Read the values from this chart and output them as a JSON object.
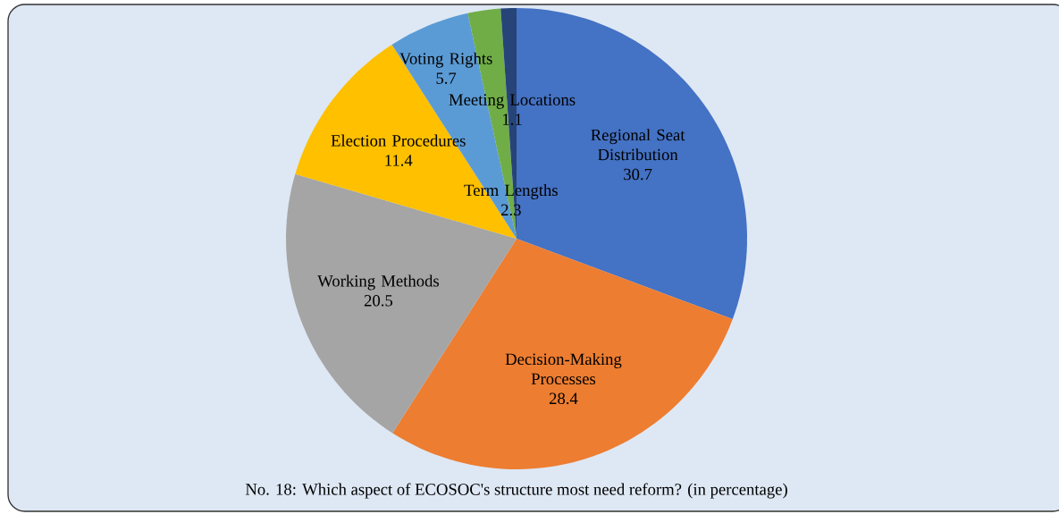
{
  "chart_data": {
    "type": "pie",
    "title": "No. 18: Which aspect of ECOSOC's structure most need reform? (in percentage)",
    "categories": [
      "Regional Seat Distribution",
      "Decision-Making Processes",
      "Working Methods",
      "Election Procedures",
      "Voting Rights",
      "Term Lengths",
      "Meeting Locations"
    ],
    "values": [
      30.7,
      28.4,
      20.5,
      11.4,
      5.7,
      2.3,
      1.1
    ],
    "colors": [
      "#4472c4",
      "#ed7d31",
      "#a5a5a5",
      "#ffc000",
      "#5b9bd5",
      "#70ad47",
      "#264478"
    ],
    "data_labels": true
  }
}
